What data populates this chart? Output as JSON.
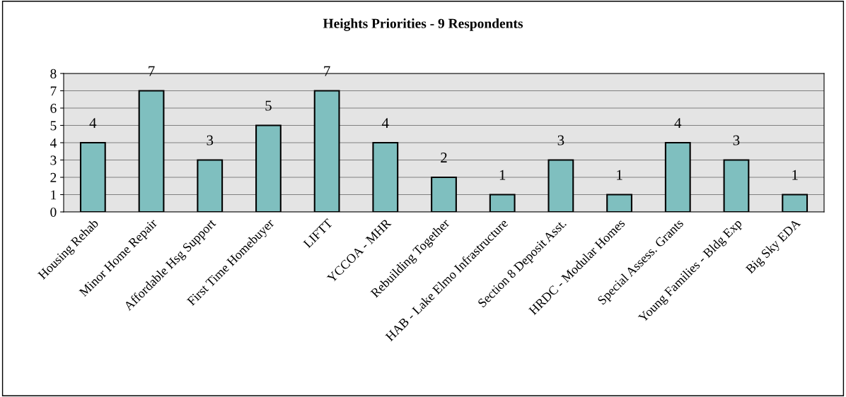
{
  "chart_data": {
    "type": "bar",
    "title": "Heights Priorities - 9 Respondents",
    "categories": [
      "Housing Rehab",
      "Minor Home Repair",
      "Affordable Hsg Support",
      "First Time Homebuyer",
      "LIFTT",
      "YCCOA - MHR",
      "Rebuilding Together",
      "HAB - Lake Elmo Infrastructure",
      "Section 8 Deposit Asst.",
      "HRDC - Modular Homes",
      "Special Assess. Grants",
      "Young Families - Bldg Exp",
      "Big Sky EDA"
    ],
    "values": [
      4,
      7,
      3,
      5,
      7,
      4,
      2,
      1,
      3,
      1,
      4,
      3,
      1
    ],
    "color": "#7fbfbf",
    "ylim": [
      0,
      8
    ],
    "yticks": [
      0,
      1,
      2,
      3,
      4,
      5,
      6,
      7,
      8
    ],
    "grid": "y",
    "data_labels": true,
    "legend": false
  }
}
